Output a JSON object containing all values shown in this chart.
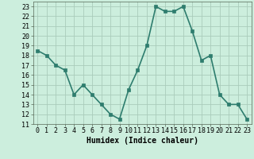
{
  "x": [
    0,
    1,
    2,
    3,
    4,
    5,
    6,
    7,
    8,
    9,
    10,
    11,
    12,
    13,
    14,
    15,
    16,
    17,
    18,
    19,
    20,
    21,
    22,
    23
  ],
  "y": [
    18.5,
    18.0,
    17.0,
    16.5,
    14.0,
    15.0,
    14.0,
    13.0,
    12.0,
    11.5,
    14.5,
    16.5,
    19.0,
    23.0,
    22.5,
    22.5,
    23.0,
    20.5,
    17.5,
    18.0,
    14.0,
    13.0,
    13.0,
    11.5
  ],
  "line_color": "#2e7d6e",
  "marker_color": "#2e7d6e",
  "bg_color": "#cceedd",
  "grid_color": "#aaccbb",
  "xlabel": "Humidex (Indice chaleur)",
  "ylim": [
    11,
    23.5
  ],
  "xlim": [
    -0.5,
    23.5
  ],
  "yticks": [
    11,
    12,
    13,
    14,
    15,
    16,
    17,
    18,
    19,
    20,
    21,
    22,
    23
  ],
  "xticks": [
    0,
    1,
    2,
    3,
    4,
    5,
    6,
    7,
    8,
    9,
    10,
    11,
    12,
    13,
    14,
    15,
    16,
    17,
    18,
    19,
    20,
    21,
    22,
    23
  ],
  "xlabel_fontsize": 7,
  "tick_fontsize": 6,
  "linewidth": 1.2,
  "markersize": 2.5
}
